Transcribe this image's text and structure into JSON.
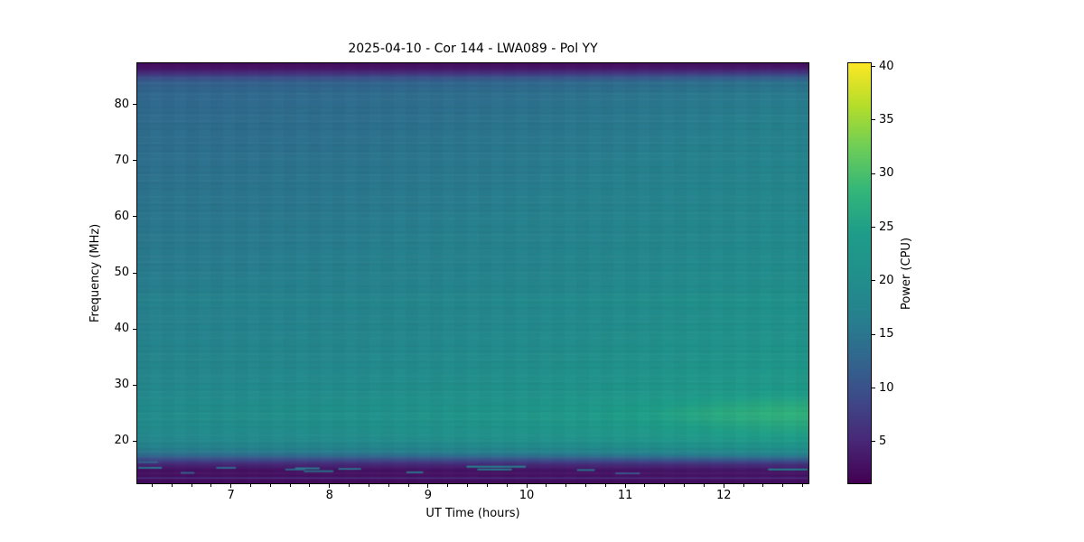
{
  "figure": {
    "background": "#ffffff"
  },
  "chart_data": {
    "type": "heatmap",
    "title": "2025-04-10 - Cor 144 - LWA089 - Pol YY",
    "xlabel": "UT Time (hours)",
    "ylabel": "Frequency (MHz)",
    "colorbar_label": "Power (CPU)",
    "colormap": "viridis",
    "x_range": [
      6.05,
      12.85
    ],
    "y_range": [
      12.6,
      87.4
    ],
    "x_major_ticks": [
      7,
      8,
      9,
      10,
      11,
      12
    ],
    "x_minor_tick_step": 0.2,
    "y_ticks": [
      20,
      30,
      40,
      50,
      60,
      70,
      80
    ],
    "colorbar_ticks": [
      5,
      10,
      15,
      20,
      25,
      30,
      35,
      40
    ],
    "colorbar_range": [
      1.2,
      40.3
    ],
    "legend_position": "right-colorbar",
    "grid_lines": false,
    "colormap_stops": [
      [
        0.0,
        68,
        1,
        84
      ],
      [
        0.1,
        72,
        40,
        120
      ],
      [
        0.2,
        62,
        74,
        137
      ],
      [
        0.3,
        49,
        104,
        142
      ],
      [
        0.4,
        38,
        130,
        142
      ],
      [
        0.5,
        33,
        145,
        140
      ],
      [
        0.6,
        31,
        158,
        137
      ],
      [
        0.7,
        53,
        183,
        121
      ],
      [
        0.8,
        110,
        206,
        88
      ],
      [
        0.9,
        181,
        222,
        43
      ],
      [
        1.0,
        253,
        231,
        37
      ]
    ],
    "grid": {
      "times": [
        6.05,
        6.6,
        7.2,
        7.8,
        8.4,
        9.0,
        9.6,
        10.2,
        10.8,
        11.4,
        12.0,
        12.5,
        12.85
      ],
      "freqs": [
        87.4,
        86.6,
        85.8,
        85.0,
        84.0,
        82.0,
        79.0,
        75.0,
        71.0,
        67.0,
        63.0,
        59.0,
        55.0,
        51.0,
        47.0,
        44.8,
        43.5,
        40.0,
        37.0,
        34.0,
        31.0,
        28.5,
        26.8,
        25.2,
        23.6,
        22.0,
        20.4,
        19.0,
        17.8,
        16.8,
        16.0,
        15.0,
        12.6
      ],
      "values": [
        [
          2.5,
          2.5,
          2.5,
          2.5,
          2.5,
          2.5,
          2.5,
          2.5,
          2.5,
          2.6,
          2.6,
          2.6,
          2.6
        ],
        [
          3.2,
          3.2,
          3.2,
          3.3,
          3.3,
          3.4,
          3.4,
          3.5,
          3.5,
          3.6,
          3.7,
          3.8,
          3.8
        ],
        [
          5.5,
          5.5,
          5.6,
          5.7,
          5.8,
          5.9,
          6.0,
          6.2,
          6.4,
          6.6,
          6.8,
          7.0,
          7.0
        ],
        [
          9.0,
          9.0,
          9.1,
          9.2,
          9.4,
          9.6,
          9.8,
          10.0,
          10.3,
          10.6,
          11.0,
          11.2,
          11.2
        ],
        [
          12.0,
          12.0,
          12.1,
          12.3,
          12.5,
          12.7,
          12.9,
          13.2,
          13.5,
          13.9,
          14.3,
          14.6,
          14.6
        ],
        [
          13.0,
          13.0,
          13.2,
          13.4,
          13.6,
          13.8,
          14.0,
          14.3,
          14.7,
          15.1,
          15.5,
          15.8,
          15.9
        ],
        [
          13.4,
          13.4,
          13.6,
          13.8,
          14.0,
          14.2,
          14.5,
          14.8,
          15.2,
          15.6,
          16.1,
          16.4,
          16.5
        ],
        [
          13.8,
          13.9,
          14.0,
          14.2,
          14.4,
          14.7,
          15.0,
          15.3,
          15.7,
          16.1,
          16.6,
          17.0,
          17.1
        ],
        [
          14.2,
          14.3,
          14.4,
          14.6,
          14.8,
          15.1,
          15.4,
          15.8,
          16.2,
          16.6,
          17.1,
          17.5,
          17.6
        ],
        [
          14.5,
          14.6,
          14.8,
          15.0,
          15.2,
          15.5,
          15.8,
          16.2,
          16.6,
          17.0,
          17.5,
          17.9,
          18.0
        ],
        [
          14.9,
          15.0,
          15.1,
          15.3,
          15.6,
          15.9,
          16.2,
          16.6,
          17.0,
          17.5,
          18.0,
          18.4,
          18.5
        ],
        [
          15.2,
          15.3,
          15.5,
          15.7,
          16.0,
          16.3,
          16.6,
          17.0,
          17.4,
          17.9,
          18.4,
          18.8,
          18.9
        ],
        [
          15.6,
          15.7,
          15.9,
          16.1,
          16.4,
          16.7,
          17.0,
          17.4,
          17.8,
          18.3,
          18.8,
          19.2,
          19.3
        ],
        [
          16.0,
          16.1,
          16.3,
          16.5,
          16.8,
          17.1,
          17.4,
          17.8,
          18.3,
          18.8,
          19.3,
          19.7,
          19.8
        ],
        [
          16.4,
          16.5,
          16.7,
          16.9,
          17.2,
          17.5,
          17.9,
          18.3,
          18.8,
          19.3,
          19.8,
          20.2,
          20.3
        ],
        [
          17.5,
          17.6,
          17.8,
          18.0,
          18.3,
          18.6,
          19.0,
          19.4,
          19.9,
          20.4,
          21.0,
          21.4,
          21.5
        ],
        [
          16.8,
          16.9,
          17.1,
          17.3,
          17.6,
          17.9,
          18.3,
          18.7,
          19.2,
          19.7,
          20.3,
          20.7,
          20.8
        ],
        [
          17.2,
          17.3,
          17.5,
          17.7,
          18.0,
          18.4,
          18.8,
          19.2,
          19.7,
          20.3,
          20.9,
          21.3,
          21.4
        ],
        [
          17.6,
          17.7,
          17.9,
          18.2,
          18.5,
          18.9,
          19.3,
          19.7,
          20.2,
          20.8,
          21.4,
          21.8,
          21.9
        ],
        [
          18.0,
          18.1,
          18.3,
          18.6,
          19.0,
          19.4,
          19.8,
          20.2,
          20.8,
          21.4,
          22.0,
          22.4,
          22.5
        ],
        [
          18.4,
          18.6,
          18.8,
          19.1,
          19.5,
          19.9,
          20.3,
          20.8,
          21.4,
          22.0,
          22.7,
          23.1,
          23.2
        ],
        [
          18.9,
          19.1,
          19.4,
          19.7,
          20.1,
          20.5,
          21.0,
          21.5,
          22.2,
          23.0,
          23.8,
          24.3,
          24.4
        ],
        [
          19.4,
          19.6,
          19.9,
          20.3,
          20.7,
          21.2,
          21.7,
          22.3,
          23.2,
          24.3,
          25.6,
          26.3,
          26.4
        ],
        [
          19.8,
          20.0,
          20.3,
          20.7,
          21.2,
          21.7,
          22.3,
          23.0,
          24.0,
          25.3,
          26.8,
          27.7,
          27.8
        ],
        [
          19.6,
          19.8,
          20.1,
          20.5,
          21.0,
          21.5,
          22.1,
          22.8,
          23.7,
          24.9,
          26.2,
          27.0,
          27.1
        ],
        [
          19.2,
          19.4,
          19.7,
          20.0,
          20.5,
          21.0,
          21.5,
          22.1,
          22.9,
          23.9,
          25.0,
          25.6,
          25.7
        ],
        [
          18.6,
          18.8,
          19.0,
          19.3,
          19.7,
          20.1,
          20.6,
          21.1,
          21.8,
          22.6,
          23.5,
          24.0,
          24.1
        ],
        [
          17.2,
          17.4,
          17.6,
          17.8,
          18.1,
          18.5,
          18.9,
          19.3,
          19.8,
          20.4,
          21.1,
          21.5,
          21.6
        ],
        [
          14.5,
          14.6,
          14.8,
          15.0,
          15.2,
          15.5,
          15.8,
          16.1,
          16.5,
          16.9,
          17.4,
          17.7,
          17.8
        ],
        [
          9.5,
          9.6,
          9.7,
          9.8,
          10.0,
          10.2,
          10.4,
          10.6,
          10.9,
          11.2,
          11.6,
          11.8,
          11.9
        ],
        [
          5.5,
          5.5,
          5.6,
          5.7,
          5.8,
          5.9,
          6.0,
          6.1,
          6.3,
          6.5,
          6.7,
          6.8,
          6.9
        ],
        [
          3.0,
          3.0,
          3.0,
          3.1,
          3.1,
          3.2,
          3.2,
          3.3,
          3.3,
          3.4,
          3.5,
          3.5,
          3.5
        ],
        [
          2.3,
          2.3,
          2.3,
          2.3,
          2.3,
          2.4,
          2.4,
          2.4,
          2.4,
          2.5,
          2.5,
          2.5,
          2.5
        ]
      ]
    },
    "rfi_streaks": [
      {
        "t0": 6.06,
        "t1": 6.26,
        "f": 16.2,
        "v": 13
      },
      {
        "t0": 6.06,
        "t1": 6.3,
        "f": 15.2,
        "v": 15
      },
      {
        "t0": 6.49,
        "t1": 6.63,
        "f": 14.3,
        "v": 12
      },
      {
        "t0": 6.85,
        "t1": 7.05,
        "f": 15.2,
        "v": 13
      },
      {
        "t0": 7.55,
        "t1": 7.75,
        "f": 14.9,
        "v": 13
      },
      {
        "t0": 7.65,
        "t1": 7.9,
        "f": 15.1,
        "v": 16
      },
      {
        "t0": 7.74,
        "t1": 8.04,
        "f": 14.6,
        "v": 15
      },
      {
        "t0": 8.09,
        "t1": 8.32,
        "f": 15.0,
        "v": 14
      },
      {
        "t0": 8.78,
        "t1": 8.95,
        "f": 14.4,
        "v": 15
      },
      {
        "t0": 9.39,
        "t1": 9.99,
        "f": 15.4,
        "v": 17
      },
      {
        "t0": 9.5,
        "t1": 9.85,
        "f": 14.9,
        "v": 16
      },
      {
        "t0": 10.51,
        "t1": 10.69,
        "f": 14.8,
        "v": 15
      },
      {
        "t0": 10.9,
        "t1": 11.15,
        "f": 14.2,
        "v": 10
      },
      {
        "t0": 12.45,
        "t1": 12.85,
        "f": 14.9,
        "v": 17
      },
      {
        "t0": 6.05,
        "t1": 12.85,
        "f": 13.4,
        "v": 5
      }
    ]
  }
}
